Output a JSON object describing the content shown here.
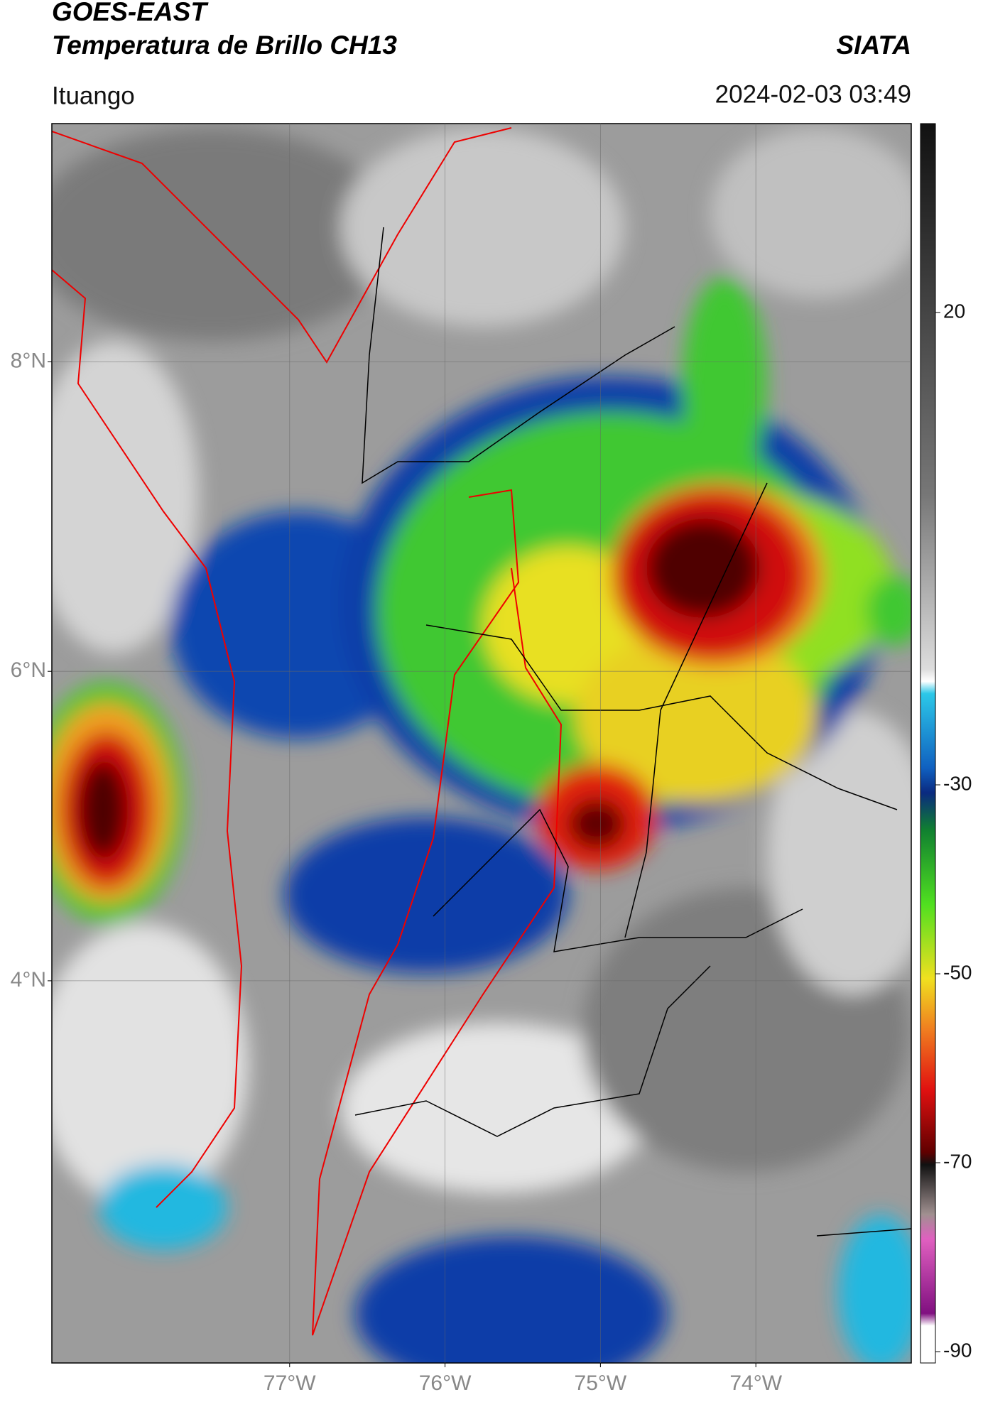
{
  "header": {
    "title": "GOES-EAST",
    "subtitle": "Temperatura de Brillo CH13",
    "source": "SIATA",
    "location": "Ituango",
    "datetime": "2024-02-03 03:49"
  },
  "map": {
    "xlim": [
      -78.53,
      -73.0
    ],
    "ylim": [
      1.53,
      9.54
    ],
    "xticks": [
      {
        "value": -77,
        "label": "77°W"
      },
      {
        "value": -76,
        "label": "76°W"
      },
      {
        "value": -75,
        "label": "75°W"
      },
      {
        "value": -74,
        "label": "74°W"
      }
    ],
    "yticks": [
      {
        "value": 4,
        "label": "4°N"
      },
      {
        "value": 6,
        "label": "6°N"
      },
      {
        "value": 8,
        "label": "8°N"
      }
    ],
    "grid": true
  },
  "colorbar": {
    "lim": [
      -91.2,
      40
    ],
    "ticks": [
      20,
      -30,
      -50,
      -70,
      -90
    ]
  }
}
